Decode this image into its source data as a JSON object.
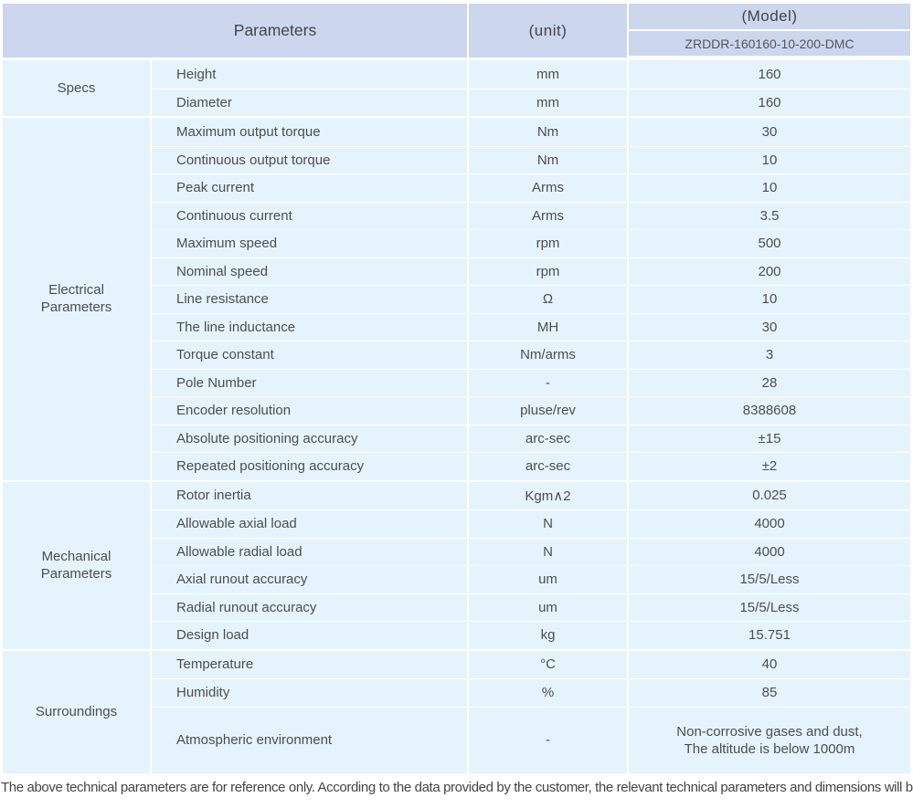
{
  "header": {
    "parameters": "Parameters",
    "unit": "(unit)",
    "model": "(Model)",
    "model_value": "ZRDDR-160160-10-200-DMC"
  },
  "sections": [
    {
      "name": "Specs",
      "rows": [
        {
          "param": "Height",
          "unit": "mm",
          "value": "160"
        },
        {
          "param": "Diameter",
          "unit": "mm",
          "value": "160"
        }
      ]
    },
    {
      "name": "Electrical Parameters",
      "rows": [
        {
          "param": "Maximum output torque",
          "unit": "Nm",
          "value": "30"
        },
        {
          "param": "Continuous output torque",
          "unit": "Nm",
          "value": "10"
        },
        {
          "param": "Peak current",
          "unit": "Arms",
          "value": "10"
        },
        {
          "param": "Continuous current",
          "unit": "Arms",
          "value": "3.5"
        },
        {
          "param": "Maximum speed",
          "unit": "rpm",
          "value": "500"
        },
        {
          "param": "Nominal speed",
          "unit": "rpm",
          "value": "200"
        },
        {
          "param": "Line resistance",
          "unit": "Ω",
          "value": "10"
        },
        {
          "param": "The line inductance",
          "unit": "MH",
          "value": "30"
        },
        {
          "param": "Torque constant",
          "unit": "Nm/arms",
          "value": "3"
        },
        {
          "param": "Pole Number",
          "unit": "-",
          "value": "28"
        },
        {
          "param": "Encoder resolution",
          "unit": "pluse/rev",
          "value": "8388608"
        },
        {
          "param": "Absolute positioning accuracy",
          "unit": "arc-sec",
          "value": "±15"
        },
        {
          "param": "Repeated positioning accuracy",
          "unit": "arc-sec",
          "value": "±2"
        }
      ]
    },
    {
      "name": "Mechanical Parameters",
      "rows": [
        {
          "param": "Rotor inertia",
          "unit": "Kgm∧2",
          "value": "0.025"
        },
        {
          "param": "Allowable axial load",
          "unit": "N",
          "value": "4000"
        },
        {
          "param": "Allowable radial load",
          "unit": "N",
          "value": "4000"
        },
        {
          "param": "Axial runout accuracy",
          "unit": "um",
          "value": "15/5/Less"
        },
        {
          "param": "Radial runout accuracy",
          "unit": "um",
          "value": "15/5/Less"
        },
        {
          "param": "Design load",
          "unit": "kg",
          "value": "15.751"
        }
      ]
    },
    {
      "name": "Surroundings",
      "rows": [
        {
          "param": "Temperature",
          "unit": "°C",
          "value": "40"
        },
        {
          "param": "Humidity",
          "unit": "%",
          "value": "85"
        },
        {
          "param": "Atmospheric environment",
          "unit": "-",
          "value": "Non-corrosive gases and dust,\nThe altitude is below 1000m"
        }
      ]
    }
  ],
  "footer": {
    "note": "The above technical parameters are for reference only. According to the data provided by the customer, the relevant technical parameters and dimensions will be issued."
  },
  "colors": {
    "header_bg": "#ccd6ed",
    "cell_bg": "#e5f4fc",
    "text": "#4d4d52",
    "note_text": "#454545"
  }
}
